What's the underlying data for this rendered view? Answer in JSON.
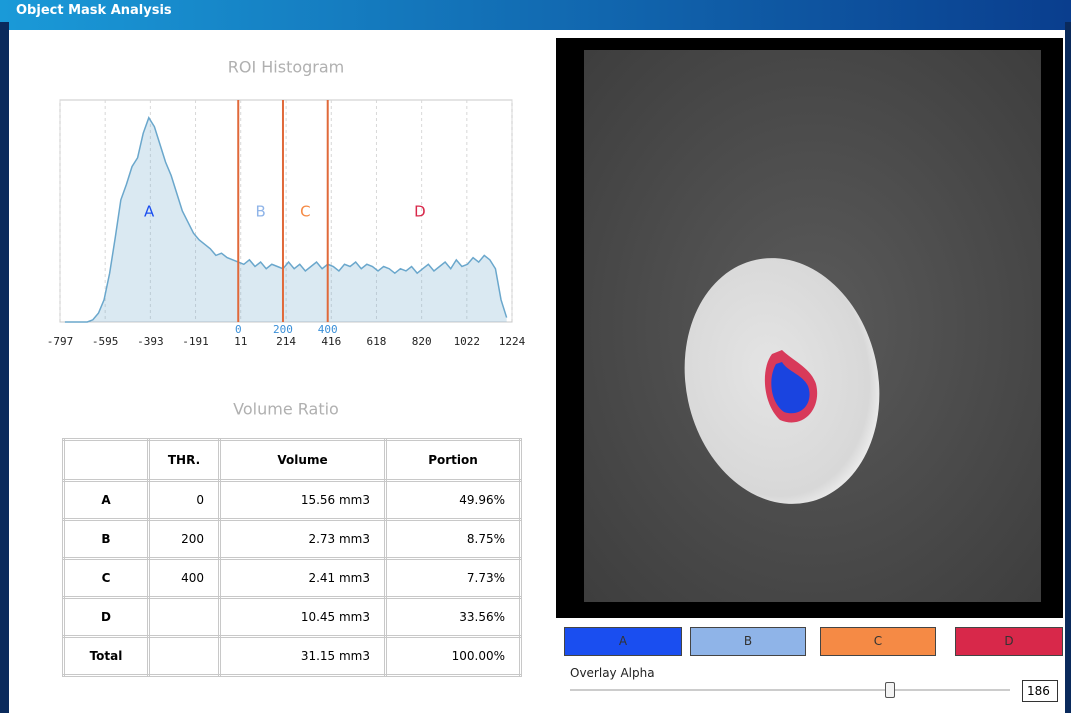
{
  "window": {
    "title": "Object Mask Analysis"
  },
  "chart_data": {
    "type": "line",
    "title": "ROI Histogram",
    "x": [
      -775,
      -750,
      -725,
      -700,
      -675,
      -650,
      -625,
      -600,
      -575,
      -550,
      -525,
      -500,
      -475,
      -450,
      -425,
      -400,
      -375,
      -350,
      -325,
      -300,
      -275,
      -250,
      -225,
      -200,
      -175,
      -150,
      -125,
      -100,
      -75,
      -50,
      -25,
      0,
      25,
      50,
      75,
      100,
      125,
      150,
      175,
      200,
      225,
      250,
      275,
      300,
      325,
      350,
      375,
      400,
      425,
      450,
      475,
      500,
      525,
      550,
      575,
      600,
      625,
      650,
      675,
      700,
      725,
      750,
      775,
      800,
      825,
      850,
      875,
      900,
      925,
      950,
      975,
      1000,
      1025,
      1050,
      1075,
      1100,
      1125,
      1150,
      1175,
      1200
    ],
    "values": [
      0,
      0,
      0,
      0,
      0,
      1,
      4,
      10,
      22,
      38,
      55,
      62,
      70,
      74,
      85,
      92,
      88,
      80,
      72,
      66,
      58,
      50,
      45,
      40,
      37,
      35,
      33,
      30,
      31,
      29,
      28,
      27,
      26,
      28,
      25,
      27,
      24,
      26,
      25,
      24,
      27,
      24,
      26,
      23,
      25,
      27,
      24,
      26,
      25,
      23,
      26,
      25,
      27,
      24,
      26,
      25,
      23,
      25,
      24,
      22,
      24,
      23,
      25,
      22,
      24,
      26,
      23,
      25,
      27,
      24,
      28,
      25,
      26,
      29,
      27,
      30,
      28,
      24,
      10,
      2
    ],
    "color": "#6aa7cc",
    "xlim": [
      -797,
      1224
    ],
    "ylim": [
      0,
      100
    ],
    "xticks": [
      -797,
      -595,
      -393,
      -191,
      11,
      214,
      416,
      618,
      820,
      1022,
      1224
    ],
    "thresholds": [
      0,
      200,
      400
    ],
    "threshold_color": "#e0693a",
    "threshold_label_color": "#3a8fd8",
    "grid": true
  },
  "regions": [
    {
      "name": "A",
      "color": "#1a4ef0"
    },
    {
      "name": "B",
      "color": "#8fb4e8"
    },
    {
      "name": "C",
      "color": "#f58a45"
    },
    {
      "name": "D",
      "color": "#d8284a"
    }
  ],
  "volume_ratio": {
    "title": "Volume Ratio",
    "columns": [
      null,
      "THR.",
      "Volume",
      "Portion"
    ],
    "rows": [
      [
        "A",
        0,
        "15.56 mm3",
        "49.96%"
      ],
      [
        "B",
        200,
        "2.73 mm3",
        "8.75%"
      ],
      [
        "C",
        400,
        "2.41 mm3",
        "7.73%"
      ],
      [
        "D",
        null,
        "10.45 mm3",
        "33.56%"
      ],
      [
        "Total",
        null,
        "31.15 mm3",
        "100.00%"
      ]
    ]
  },
  "overlay": {
    "label": "Overlay Alpha",
    "value": 186
  }
}
